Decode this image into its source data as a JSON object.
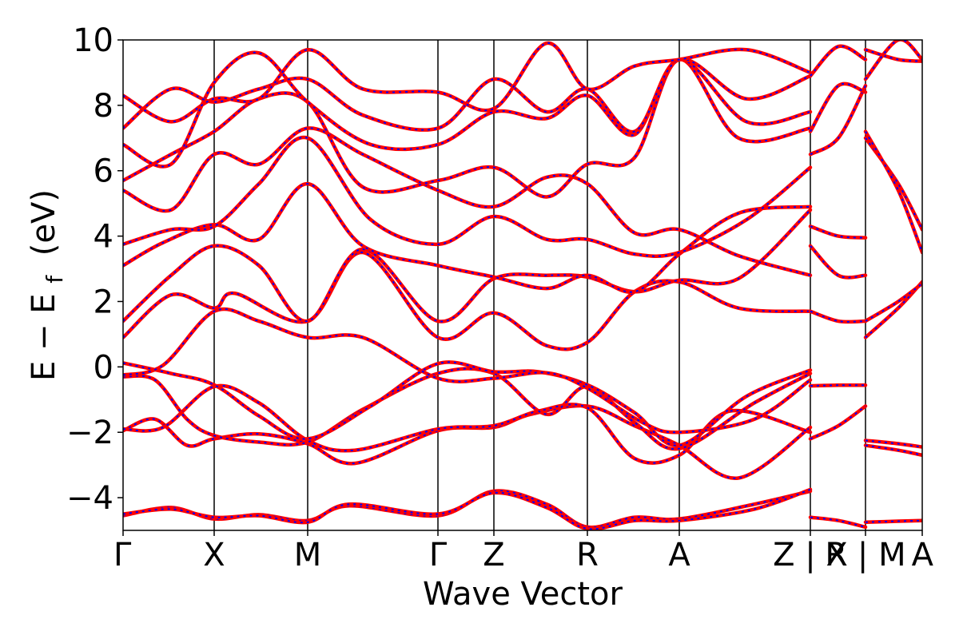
{
  "chart_data": {
    "type": "line",
    "title": "",
    "xlabel": "Wave Vector",
    "ylabel": "E − E",
    "ylabel_subscript": "f",
    "ylabel_unit": "(eV)",
    "x_range": [
      0,
      1
    ],
    "ylim": [
      -5,
      10
    ],
    "grid": false,
    "legend": "none",
    "colors": {
      "line_primary": "#ff0000",
      "line_secondary": "#0000ff",
      "axes": "#000000",
      "background": "#ffffff"
    },
    "y_ticks": [
      "−4",
      "−2",
      "0",
      "2",
      "4",
      "6",
      "8",
      "10"
    ],
    "x_ticks": [
      {
        "label": "Γ",
        "x": 0.0
      },
      {
        "label": "X",
        "x": 0.114
      },
      {
        "label": "M",
        "x": 0.231
      },
      {
        "label": "Γ",
        "x": 0.394
      },
      {
        "label": "Z",
        "x": 0.464
      },
      {
        "label": "R",
        "x": 0.581
      },
      {
        "label": "A",
        "x": 0.696
      },
      {
        "label": "Z | X",
        "x": 0.86
      },
      {
        "label": "R | M",
        "x": 0.929
      },
      {
        "label": "A",
        "x": 1.0
      }
    ],
    "segment_boundaries": [
      0.114,
      0.231,
      0.394,
      0.464,
      0.581,
      0.696,
      0.86,
      0.929
    ],
    "series": [
      {
        "values": [
          [
            0.0,
            -4.55
          ],
          [
            0.06,
            -4.3
          ],
          [
            0.114,
            -4.65
          ],
          [
            0.17,
            -4.52
          ],
          [
            0.231,
            -4.7
          ],
          [
            0.283,
            -4.25
          ],
          [
            0.394,
            -4.55
          ],
          [
            0.464,
            -3.8
          ],
          [
            0.53,
            -4.2
          ],
          [
            0.581,
            -4.9
          ],
          [
            0.64,
            -4.6
          ],
          [
            0.696,
            -4.65
          ],
          [
            0.79,
            -4.2
          ],
          [
            0.86,
            -3.8
          ]
        ]
      },
      {
        "values": [
          [
            0.0,
            -4.5
          ],
          [
            0.06,
            -4.35
          ],
          [
            0.114,
            -4.6
          ],
          [
            0.17,
            -4.55
          ],
          [
            0.231,
            -4.75
          ],
          [
            0.283,
            -4.2
          ],
          [
            0.394,
            -4.5
          ],
          [
            0.464,
            -3.85
          ],
          [
            0.53,
            -4.3
          ],
          [
            0.581,
            -4.95
          ],
          [
            0.64,
            -4.7
          ],
          [
            0.696,
            -4.7
          ],
          [
            0.79,
            -4.35
          ],
          [
            0.86,
            -3.75
          ]
        ]
      },
      {
        "values": [
          [
            0.86,
            -4.6
          ],
          [
            0.895,
            -4.7
          ],
          [
            0.929,
            -4.9
          ]
        ]
      },
      {
        "values": [
          [
            0.929,
            -4.75
          ],
          [
            0.97,
            -4.72
          ],
          [
            1.0,
            -4.7
          ]
        ]
      },
      {
        "values": [
          [
            0.0,
            -1.95
          ],
          [
            0.04,
            -1.6
          ],
          [
            0.08,
            -2.4
          ],
          [
            0.114,
            -2.2
          ],
          [
            0.17,
            -2.05
          ],
          [
            0.231,
            -2.35
          ],
          [
            0.29,
            -2.95
          ],
          [
            0.394,
            -1.95
          ],
          [
            0.464,
            -1.85
          ],
          [
            0.51,
            -1.45
          ],
          [
            0.581,
            -1.2
          ],
          [
            0.64,
            -1.8
          ],
          [
            0.696,
            -2.4
          ],
          [
            0.77,
            -3.4
          ],
          [
            0.86,
            -1.85
          ]
        ]
      },
      {
        "values": [
          [
            0.0,
            -1.9
          ],
          [
            0.05,
            -1.85
          ],
          [
            0.114,
            -0.6
          ],
          [
            0.17,
            -1.1
          ],
          [
            0.231,
            -2.25
          ],
          [
            0.29,
            -2.55
          ],
          [
            0.394,
            -1.9
          ],
          [
            0.464,
            -1.8
          ],
          [
            0.52,
            -1.35
          ],
          [
            0.581,
            -1.25
          ],
          [
            0.64,
            -2.8
          ],
          [
            0.696,
            -2.7
          ],
          [
            0.76,
            -1.35
          ],
          [
            0.86,
            -2.0
          ]
        ]
      },
      {
        "values": [
          [
            0.86,
            -2.2
          ],
          [
            0.895,
            -1.8
          ],
          [
            0.929,
            -1.2
          ]
        ]
      },
      {
        "values": [
          [
            0.86,
            -0.58
          ],
          [
            0.895,
            -0.56
          ],
          [
            0.929,
            -0.56
          ]
        ]
      },
      {
        "values": [
          [
            0.929,
            -2.25
          ],
          [
            0.97,
            -2.35
          ],
          [
            1.0,
            -2.45
          ]
        ]
      },
      {
        "values": [
          [
            0.929,
            -2.4
          ],
          [
            0.97,
            -2.55
          ],
          [
            1.0,
            -2.7
          ]
        ]
      },
      {
        "values": [
          [
            0.0,
            -0.3
          ],
          [
            0.04,
            -0.4
          ],
          [
            0.08,
            -1.6
          ],
          [
            0.114,
            -2.1
          ],
          [
            0.17,
            -2.3
          ],
          [
            0.231,
            -2.3
          ],
          [
            0.3,
            -1.3
          ],
          [
            0.394,
            -0.2
          ],
          [
            0.464,
            -0.2
          ],
          [
            0.53,
            -1.45
          ],
          [
            0.581,
            -0.6
          ],
          [
            0.64,
            -1.7
          ],
          [
            0.696,
            -2.5
          ],
          [
            0.79,
            -1.1
          ],
          [
            0.86,
            -0.2
          ]
        ]
      },
      {
        "values": [
          [
            0.0,
            0.12
          ],
          [
            0.06,
            -0.2
          ],
          [
            0.114,
            -0.55
          ],
          [
            0.17,
            -1.5
          ],
          [
            0.231,
            -2.2
          ],
          [
            0.31,
            -1.2
          ],
          [
            0.394,
            0.1
          ],
          [
            0.464,
            -0.15
          ],
          [
            0.52,
            -0.15
          ],
          [
            0.581,
            -0.55
          ],
          [
            0.64,
            -1.4
          ],
          [
            0.696,
            -2.4
          ],
          [
            0.78,
            -0.9
          ],
          [
            0.86,
            -0.1
          ]
        ]
      },
      {
        "values": [
          [
            0.0,
            -0.25
          ],
          [
            0.05,
            0.05
          ],
          [
            0.114,
            1.7
          ],
          [
            0.17,
            1.4
          ],
          [
            0.231,
            0.9
          ],
          [
            0.3,
            0.9
          ],
          [
            0.394,
            -0.35
          ],
          [
            0.464,
            -0.35
          ],
          [
            0.53,
            -0.18
          ],
          [
            0.581,
            -0.65
          ],
          [
            0.65,
            -1.7
          ],
          [
            0.696,
            -2.0
          ],
          [
            0.79,
            -1.6
          ],
          [
            0.86,
            -0.4
          ]
        ]
      },
      {
        "values": [
          [
            0.0,
            0.9
          ],
          [
            0.06,
            2.2
          ],
          [
            0.114,
            1.8
          ],
          [
            0.14,
            2.25
          ],
          [
            0.231,
            1.4
          ],
          [
            0.3,
            3.5
          ],
          [
            0.394,
            0.9
          ],
          [
            0.464,
            1.65
          ],
          [
            0.53,
            0.65
          ],
          [
            0.581,
            0.75
          ],
          [
            0.64,
            2.3
          ],
          [
            0.696,
            2.6
          ],
          [
            0.77,
            1.8
          ],
          [
            0.86,
            1.7
          ]
        ]
      },
      {
        "values": [
          [
            0.0,
            1.4
          ],
          [
            0.06,
            2.8
          ],
          [
            0.114,
            3.7
          ],
          [
            0.17,
            3.1
          ],
          [
            0.231,
            1.4
          ],
          [
            0.3,
            3.6
          ],
          [
            0.394,
            1.4
          ],
          [
            0.464,
            2.7
          ],
          [
            0.53,
            2.8
          ],
          [
            0.581,
            2.75
          ],
          [
            0.64,
            2.3
          ],
          [
            0.696,
            2.65
          ],
          [
            0.77,
            2.7
          ],
          [
            0.86,
            4.8
          ]
        ]
      },
      {
        "values": [
          [
            0.86,
            1.7
          ],
          [
            0.895,
            1.4
          ],
          [
            0.929,
            1.4
          ]
        ]
      },
      {
        "values": [
          [
            0.929,
            0.9
          ],
          [
            0.97,
            1.8
          ],
          [
            1.0,
            2.6
          ]
        ]
      },
      {
        "values": [
          [
            0.929,
            1.4
          ],
          [
            0.97,
            2.0
          ],
          [
            1.0,
            2.55
          ]
        ]
      },
      {
        "values": [
          [
            0.0,
            3.1
          ],
          [
            0.05,
            3.8
          ],
          [
            0.114,
            4.35
          ],
          [
            0.17,
            3.9
          ],
          [
            0.231,
            5.6
          ],
          [
            0.3,
            3.7
          ],
          [
            0.394,
            3.1
          ],
          [
            0.464,
            2.75
          ],
          [
            0.53,
            2.4
          ],
          [
            0.581,
            2.8
          ],
          [
            0.64,
            2.3
          ],
          [
            0.696,
            3.45
          ],
          [
            0.77,
            4.7
          ],
          [
            0.86,
            4.9
          ]
        ]
      },
      {
        "values": [
          [
            0.0,
            3.75
          ],
          [
            0.06,
            4.2
          ],
          [
            0.114,
            4.3
          ],
          [
            0.17,
            5.6
          ],
          [
            0.231,
            7.0
          ],
          [
            0.31,
            4.5
          ],
          [
            0.394,
            3.75
          ],
          [
            0.464,
            4.6
          ],
          [
            0.53,
            3.9
          ],
          [
            0.581,
            3.9
          ],
          [
            0.64,
            3.45
          ],
          [
            0.696,
            3.5
          ],
          [
            0.78,
            4.5
          ],
          [
            0.86,
            6.1
          ]
        ]
      },
      {
        "values": [
          [
            0.0,
            5.4
          ],
          [
            0.06,
            4.8
          ],
          [
            0.114,
            6.5
          ],
          [
            0.17,
            6.2
          ],
          [
            0.231,
            7.3
          ],
          [
            0.3,
            6.5
          ],
          [
            0.394,
            5.4
          ],
          [
            0.464,
            4.9
          ],
          [
            0.53,
            5.8
          ],
          [
            0.581,
            5.6
          ],
          [
            0.64,
            4.1
          ],
          [
            0.696,
            4.2
          ],
          [
            0.77,
            3.4
          ],
          [
            0.86,
            2.8
          ]
        ]
      },
      {
        "values": [
          [
            0.86,
            3.7
          ],
          [
            0.895,
            2.8
          ],
          [
            0.929,
            2.8
          ]
        ]
      },
      {
        "values": [
          [
            0.86,
            4.3
          ],
          [
            0.895,
            4.0
          ],
          [
            0.929,
            3.95
          ]
        ]
      },
      {
        "values": [
          [
            0.929,
            7.0
          ],
          [
            0.97,
            5.6
          ],
          [
            1.0,
            4.2
          ]
        ]
      },
      {
        "values": [
          [
            0.929,
            7.2
          ],
          [
            0.97,
            5.4
          ],
          [
            1.0,
            3.5
          ]
        ]
      },
      {
        "values": [
          [
            0.0,
            5.7
          ],
          [
            0.06,
            6.5
          ],
          [
            0.114,
            7.2
          ],
          [
            0.17,
            8.2
          ],
          [
            0.231,
            8.1
          ],
          [
            0.3,
            5.5
          ],
          [
            0.394,
            5.7
          ],
          [
            0.464,
            6.1
          ],
          [
            0.53,
            5.2
          ],
          [
            0.581,
            6.2
          ],
          [
            0.64,
            6.4
          ],
          [
            0.696,
            9.4
          ],
          [
            0.77,
            7.0
          ],
          [
            0.86,
            7.3
          ]
        ]
      },
      {
        "values": [
          [
            0.0,
            6.8
          ],
          [
            0.06,
            6.2
          ],
          [
            0.114,
            8.7
          ],
          [
            0.17,
            9.6
          ],
          [
            0.231,
            8.1
          ],
          [
            0.31,
            6.8
          ],
          [
            0.394,
            6.8
          ],
          [
            0.464,
            7.8
          ],
          [
            0.53,
            7.6
          ],
          [
            0.581,
            8.3
          ],
          [
            0.64,
            7.1
          ],
          [
            0.696,
            9.4
          ],
          [
            0.78,
            7.5
          ],
          [
            0.86,
            7.8
          ]
        ]
      },
      {
        "values": [
          [
            0.0,
            7.3
          ],
          [
            0.06,
            8.5
          ],
          [
            0.114,
            8.1
          ],
          [
            0.17,
            8.5
          ],
          [
            0.231,
            8.8
          ],
          [
            0.3,
            7.7
          ],
          [
            0.394,
            7.3
          ],
          [
            0.464,
            8.8
          ],
          [
            0.53,
            7.8
          ],
          [
            0.581,
            8.5
          ],
          [
            0.64,
            7.2
          ],
          [
            0.696,
            9.4
          ],
          [
            0.78,
            8.2
          ],
          [
            0.86,
            8.9
          ]
        ]
      },
      {
        "values": [
          [
            0.0,
            8.3
          ],
          [
            0.06,
            7.5
          ],
          [
            0.114,
            8.2
          ],
          [
            0.17,
            8.2
          ],
          [
            0.231,
            9.7
          ],
          [
            0.3,
            8.5
          ],
          [
            0.394,
            8.4
          ],
          [
            0.464,
            7.9
          ],
          [
            0.53,
            9.9
          ],
          [
            0.581,
            8.5
          ],
          [
            0.64,
            9.2
          ],
          [
            0.696,
            9.4
          ],
          [
            0.78,
            9.7
          ],
          [
            0.86,
            9.0
          ]
        ]
      },
      {
        "values": [
          [
            0.86,
            6.5
          ],
          [
            0.895,
            7.0
          ],
          [
            0.929,
            8.6
          ]
        ]
      },
      {
        "values": [
          [
            0.86,
            7.2
          ],
          [
            0.895,
            8.6
          ],
          [
            0.929,
            8.4
          ]
        ]
      },
      {
        "values": [
          [
            0.86,
            8.9
          ],
          [
            0.895,
            9.8
          ],
          [
            0.929,
            9.4
          ]
        ]
      },
      {
        "values": [
          [
            0.929,
            9.7
          ],
          [
            0.97,
            9.4
          ],
          [
            1.0,
            9.35
          ]
        ]
      },
      {
        "values": [
          [
            0.929,
            8.8
          ],
          [
            0.97,
            10.0
          ],
          [
            1.0,
            9.4
          ]
        ]
      }
    ]
  }
}
